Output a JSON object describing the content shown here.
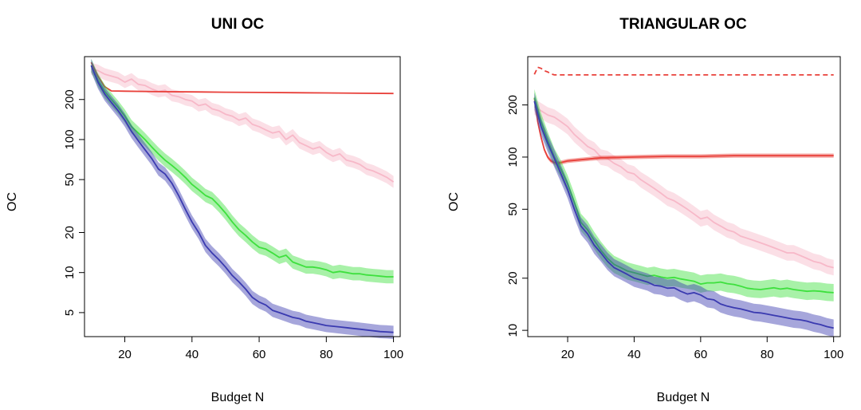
{
  "chart_data": [
    {
      "type": "line",
      "title": "UNI OC",
      "xlabel": "Budget N",
      "ylabel": "OC",
      "y_scale": "log",
      "xlim": [
        8,
        102
      ],
      "ylim": [
        3.3,
        420
      ],
      "x_ticks": [
        20,
        40,
        60,
        80,
        100
      ],
      "y_ticks": [
        5,
        10,
        20,
        50,
        100,
        200
      ],
      "grid": false,
      "series": [
        {
          "color": "#f7b8c8",
          "style": "solid",
          "band": true,
          "x": [
            10,
            12,
            14,
            16,
            18,
            20,
            22,
            24,
            26,
            28,
            30,
            32,
            34,
            36,
            38,
            40,
            42,
            44,
            46,
            48,
            50,
            52,
            54,
            56,
            58,
            60,
            62,
            64,
            66,
            68,
            70,
            72,
            74,
            76,
            78,
            80,
            82,
            84,
            86,
            88,
            90,
            92,
            94,
            96,
            98,
            100
          ],
          "y": [
            340,
            330,
            310,
            300,
            290,
            270,
            285,
            260,
            255,
            240,
            230,
            235,
            215,
            210,
            200,
            195,
            180,
            185,
            170,
            165,
            155,
            150,
            140,
            145,
            130,
            125,
            118,
            112,
            115,
            100,
            108,
            95,
            90,
            85,
            88,
            80,
            75,
            78,
            70,
            68,
            65,
            60,
            58,
            55,
            52,
            48
          ]
        },
        {
          "color": "#e8403a",
          "style": "solid",
          "band": false,
          "x": [
            10,
            12,
            14,
            16,
            20,
            30,
            40,
            50,
            60,
            70,
            80,
            90,
            100
          ],
          "y": [
            380,
            300,
            250,
            232,
            231,
            229,
            228,
            227,
            226,
            225,
            224,
            223,
            222
          ]
        },
        {
          "color": "#3ee03e",
          "style": "solid",
          "band": true,
          "x": [
            10,
            12,
            14,
            16,
            18,
            20,
            22,
            24,
            26,
            28,
            30,
            32,
            34,
            36,
            38,
            40,
            42,
            44,
            46,
            48,
            50,
            52,
            54,
            56,
            58,
            60,
            62,
            64,
            66,
            68,
            70,
            72,
            74,
            76,
            78,
            80,
            82,
            84,
            86,
            88,
            90,
            92,
            94,
            96,
            98,
            100
          ],
          "y": [
            360,
            280,
            230,
            200,
            175,
            150,
            125,
            112,
            100,
            88,
            78,
            70,
            64,
            58,
            52,
            46,
            42,
            38,
            36,
            32,
            28,
            24,
            21,
            19,
            17,
            15.5,
            15,
            14,
            13,
            13.5,
            12,
            11.5,
            11,
            11,
            10.8,
            10.5,
            10,
            10.2,
            10,
            9.8,
            9.8,
            9.6,
            9.5,
            9.4,
            9.3,
            9.3
          ]
        },
        {
          "color": "#3a3ab0",
          "style": "solid",
          "band": true,
          "x": [
            10,
            12,
            14,
            16,
            18,
            20,
            22,
            24,
            26,
            28,
            30,
            32,
            34,
            36,
            38,
            40,
            42,
            44,
            46,
            48,
            50,
            52,
            54,
            56,
            58,
            60,
            62,
            64,
            66,
            68,
            70,
            72,
            74,
            76,
            78,
            80,
            82,
            84,
            86,
            88,
            90,
            92,
            94,
            96,
            98,
            100
          ],
          "y": [
            360,
            270,
            220,
            190,
            165,
            140,
            115,
            98,
            84,
            72,
            60,
            55,
            47,
            38,
            30,
            24,
            20,
            16,
            14,
            12.5,
            11,
            9.5,
            8.5,
            7.5,
            6.5,
            6,
            5.7,
            5.2,
            5,
            4.8,
            4.6,
            4.5,
            4.3,
            4.2,
            4.1,
            4,
            3.95,
            3.9,
            3.85,
            3.8,
            3.75,
            3.7,
            3.65,
            3.6,
            3.58,
            3.55
          ]
        }
      ]
    },
    {
      "type": "line",
      "title": "TRIANGULAR OC",
      "xlabel": "Budget N",
      "ylabel": "OC",
      "y_scale": "log",
      "xlim": [
        8,
        102
      ],
      "ylim": [
        9.2,
        380
      ],
      "x_ticks": [
        20,
        40,
        60,
        80,
        100
      ],
      "y_ticks": [
        10,
        20,
        50,
        100,
        200
      ],
      "grid": false,
      "series": [
        {
          "color": "#e8403a",
          "style": "dashed",
          "band": false,
          "x": [
            10,
            11,
            12,
            13,
            14,
            15,
            16,
            18,
            20,
            30,
            40,
            60,
            80,
            100
          ],
          "y": [
            300,
            330,
            325,
            315,
            310,
            302,
            298,
            298,
            298,
            298,
            298,
            298,
            298,
            298
          ]
        },
        {
          "color": "#f7b8c8",
          "style": "solid",
          "band": true,
          "x": [
            10,
            12,
            14,
            16,
            18,
            20,
            22,
            24,
            26,
            28,
            30,
            32,
            34,
            36,
            38,
            40,
            42,
            44,
            46,
            48,
            50,
            52,
            54,
            56,
            58,
            60,
            62,
            64,
            66,
            68,
            70,
            72,
            74,
            76,
            78,
            80,
            82,
            84,
            86,
            88,
            90,
            92,
            94,
            96,
            98,
            100
          ],
          "y": [
            195,
            185,
            175,
            170,
            160,
            150,
            135,
            125,
            115,
            110,
            100,
            98,
            92,
            88,
            82,
            80,
            74,
            70,
            66,
            62,
            58,
            56,
            53,
            50,
            47,
            44,
            45,
            42,
            40,
            38,
            37,
            35,
            34,
            33,
            32,
            31,
            30,
            29,
            28,
            28,
            27,
            26,
            25,
            24.5,
            23.5,
            23
          ]
        },
        {
          "color": "#e8403a",
          "style": "solid",
          "band": true,
          "x": [
            10,
            11,
            12,
            13,
            14,
            15,
            16,
            17,
            18,
            20,
            25,
            30,
            40,
            50,
            60,
            70,
            80,
            90,
            100
          ],
          "y": [
            220,
            160,
            130,
            110,
            100,
            95,
            93,
            92,
            93,
            95,
            97,
            99,
            100,
            101,
            101,
            102,
            102,
            102,
            102
          ]
        },
        {
          "color": "#3ee03e",
          "style": "solid",
          "band": true,
          "x": [
            10,
            12,
            14,
            16,
            18,
            20,
            22,
            24,
            26,
            28,
            30,
            32,
            34,
            36,
            38,
            40,
            42,
            44,
            46,
            48,
            50,
            52,
            54,
            56,
            58,
            60,
            62,
            64,
            66,
            68,
            70,
            72,
            74,
            76,
            78,
            80,
            82,
            84,
            86,
            88,
            90,
            92,
            94,
            96,
            98,
            100
          ],
          "y": [
            220,
            160,
            125,
            100,
            85,
            70,
            55,
            42,
            38,
            33,
            29,
            26,
            24,
            23,
            22,
            21.5,
            21,
            20.5,
            20.8,
            20.3,
            20,
            20.2,
            19.8,
            19.5,
            19.2,
            18.5,
            18.8,
            18.8,
            19,
            18.6,
            18.4,
            18,
            17.5,
            17.3,
            17.2,
            17.4,
            17.6,
            17.3,
            17.5,
            17.2,
            17,
            16.8,
            16.9,
            16.8,
            16.6,
            16.5
          ]
        },
        {
          "color": "#3a3ab0",
          "style": "solid",
          "band": true,
          "x": [
            10,
            12,
            14,
            16,
            18,
            20,
            22,
            24,
            26,
            28,
            30,
            32,
            34,
            36,
            38,
            40,
            42,
            44,
            46,
            48,
            50,
            52,
            54,
            56,
            58,
            60,
            62,
            64,
            66,
            68,
            70,
            72,
            74,
            76,
            78,
            80,
            82,
            84,
            86,
            88,
            90,
            92,
            94,
            96,
            98,
            100
          ],
          "y": [
            210,
            150,
            120,
            98,
            80,
            65,
            50,
            40,
            36,
            31,
            28,
            25,
            23,
            22,
            21,
            20,
            19.5,
            19,
            18.2,
            18,
            17.5,
            17.6,
            16.8,
            16.2,
            16.5,
            16,
            15.2,
            15,
            14.2,
            13.8,
            13.5,
            13.3,
            13,
            12.7,
            12.6,
            12.4,
            12.2,
            12,
            11.8,
            11.6,
            11.5,
            11.3,
            11,
            10.8,
            10.5,
            10.3
          ]
        }
      ]
    }
  ]
}
